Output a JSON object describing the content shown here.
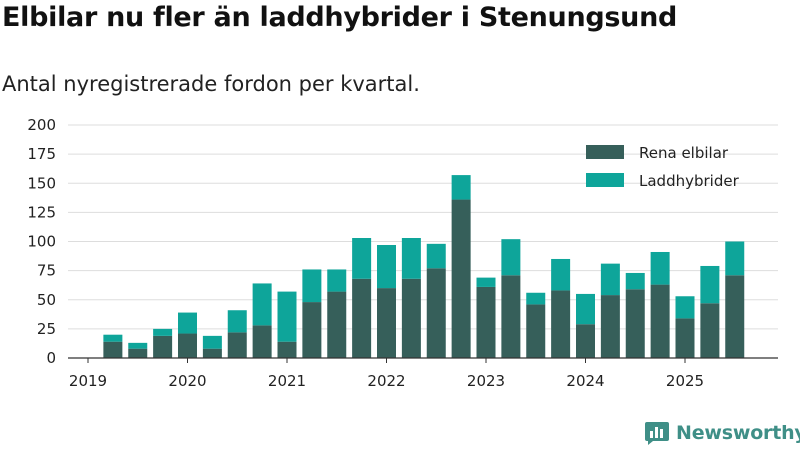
{
  "title": "Elbilar nu fler än laddhybrider i Stenungsund",
  "subtitle": "Antal nyregistrerade fordon per kvartal.",
  "brand": "Newsworthy",
  "colors": {
    "elbil": "#365f5a",
    "laddhybrid": "#0ea59a",
    "grid": "#dddddd",
    "axis": "#333333",
    "brand": "#3f8f87"
  },
  "chart_data": {
    "type": "bar",
    "stacked": true,
    "ylim": [
      0,
      200
    ],
    "y_ticks": [
      0,
      25,
      50,
      75,
      100,
      125,
      150,
      175,
      200
    ],
    "x_tick_labels": [
      "2019",
      "2020",
      "2021",
      "2022",
      "2023",
      "2024",
      "2025"
    ],
    "grid": true,
    "legend_position": "top-right",
    "categories": [
      "2019Q2",
      "2019Q3",
      "2019Q4",
      "2020Q1",
      "2020Q2",
      "2020Q3",
      "2020Q4",
      "2021Q1",
      "2021Q2",
      "2021Q3",
      "2021Q4",
      "2022Q1",
      "2022Q2",
      "2022Q3",
      "2022Q4",
      "2023Q1",
      "2023Q2",
      "2023Q3",
      "2023Q4",
      "2024Q1",
      "2024Q2",
      "2024Q3",
      "2024Q4",
      "2025Q1",
      "2025Q2",
      "2025Q3"
    ],
    "series": [
      {
        "name": "Rena elbilar",
        "values": [
          14,
          8,
          19,
          21,
          8,
          22,
          28,
          14,
          48,
          57,
          68,
          60,
          68,
          77,
          136,
          61,
          71,
          46,
          58,
          29,
          54,
          59,
          63,
          34,
          47,
          71
        ]
      },
      {
        "name": "Laddhybrider",
        "values": [
          6,
          5,
          6,
          18,
          11,
          19,
          36,
          43,
          28,
          19,
          35,
          37,
          35,
          21,
          21,
          8,
          31,
          10,
          27,
          26,
          27,
          14,
          28,
          19,
          32,
          29
        ]
      }
    ]
  }
}
